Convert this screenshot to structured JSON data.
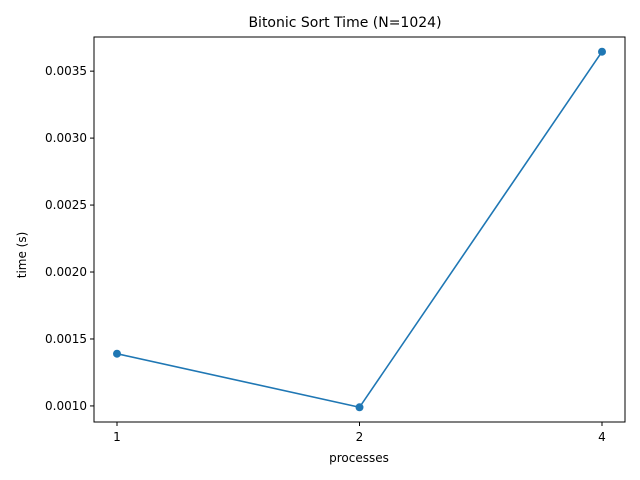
{
  "chart_data": {
    "type": "line",
    "title": "Bitonic Sort Time (N=1024)",
    "xlabel": "processes",
    "ylabel": "time (s)",
    "categories": [
      "1",
      "2",
      "4"
    ],
    "series": [
      {
        "values": [
          0.00139,
          0.00099,
          0.003645
        ]
      }
    ],
    "ylim": [
      0.00088,
      0.003755
    ],
    "yticks": [
      "0.0010",
      "0.0015",
      "0.0020",
      "0.0025",
      "0.0030",
      "0.0035"
    ],
    "ytick_values": [
      0.001,
      0.0015,
      0.002,
      0.0025,
      0.003,
      0.0035
    ],
    "grid": false,
    "colors": {
      "line": "#1f77b4",
      "marker": "#1f77b4",
      "axes": "#000000"
    }
  }
}
